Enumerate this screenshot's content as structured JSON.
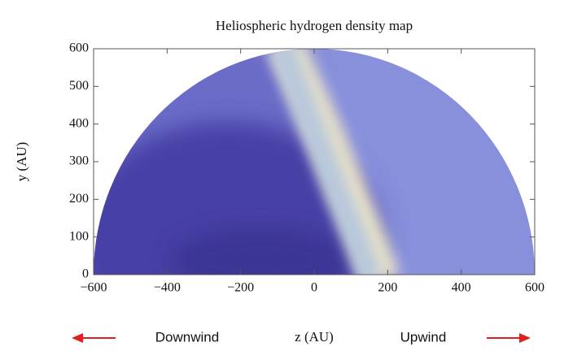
{
  "chart_data": {
    "type": "heatmap",
    "title": "Heliospheric hydrogen density map",
    "x_label": "z (AU)",
    "y_label": "y (AU)",
    "xlim": [
      -600,
      600
    ],
    "ylim": [
      0,
      600
    ],
    "xticks": [
      {
        "value": -600,
        "label": "−600"
      },
      {
        "value": -400,
        "label": "−400"
      },
      {
        "value": -200,
        "label": "−200"
      },
      0,
      200,
      400,
      600
    ],
    "yticks": [
      0,
      100,
      200,
      300,
      400,
      500,
      600
    ],
    "annotations": [
      "Downwind",
      "Upwind"
    ]
  }
}
